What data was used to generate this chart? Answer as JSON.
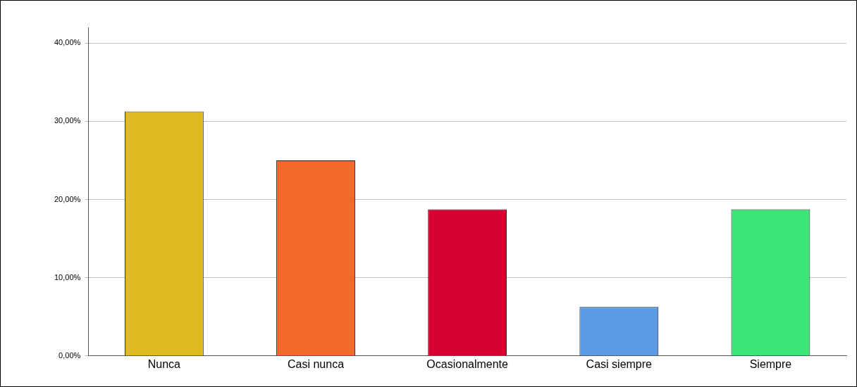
{
  "chart_data": {
    "type": "bar",
    "categories": [
      "Nunca",
      "Casi nunca",
      "Ocasionalmente",
      "Casi siempre",
      "Siempre"
    ],
    "values": [
      31.25,
      25,
      18.75,
      6.25,
      18.75
    ],
    "colors": [
      "#e0bb1f",
      "#f26a2b",
      "#d60032",
      "#5b9be6",
      "#3ee67a"
    ],
    "ylim": [
      0,
      42
    ],
    "yticks": [
      {
        "value": 0,
        "label": "0,00%"
      },
      {
        "value": 10,
        "label": "10,00%"
      },
      {
        "value": 20,
        "label": "20,00%"
      },
      {
        "value": 30,
        "label": "30,00%"
      },
      {
        "value": 40,
        "label": "40,00%"
      }
    ],
    "grid": "y",
    "legend": false
  }
}
